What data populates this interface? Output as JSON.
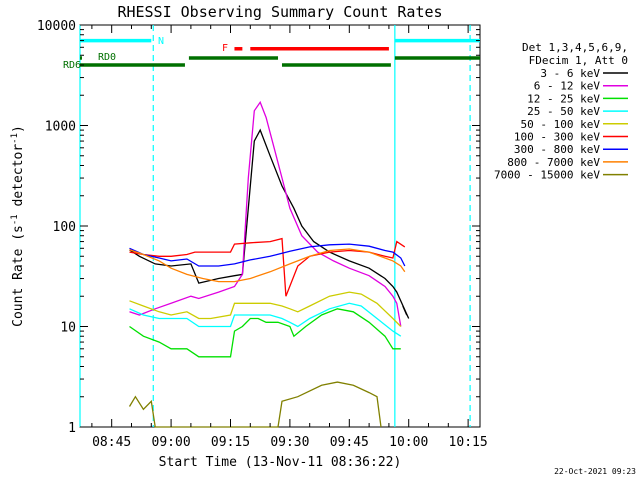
{
  "chart_data": {
    "type": "line",
    "title": "RHESSI Observing Summary Count Rates",
    "xlabel": "Start Time (13-Nov-11 08:36:22)",
    "ylabel_main": "Count Rate (s",
    "ylabel_sup1": "-1",
    "ylabel_mid": " detector",
    "ylabel_sup2": "-1",
    "ylabel_end": ")",
    "y_scale": "log",
    "ylim": [
      1,
      10000
    ],
    "xlim": [
      "08:37:00",
      "10:18:00"
    ],
    "x_ticks": [
      "08:45",
      "09:00",
      "09:15",
      "09:30",
      "09:45",
      "10:00",
      "10:15"
    ],
    "y_ticks": [
      "1",
      "10",
      "100",
      "1000",
      "10000"
    ],
    "legend_header": [
      "Det 1,3,4,5,6,9,",
      "FDecim 1, Att 0"
    ],
    "legend_position": "right",
    "series": [
      {
        "name": "3 - 6 keV",
        "color": "#000000",
        "points": [
          [
            "08:49:30",
            58
          ],
          [
            "08:52:00",
            50
          ],
          [
            "08:56:00",
            42
          ],
          [
            "09:00:00",
            40
          ],
          [
            "09:05:00",
            42
          ],
          [
            "09:07:00",
            27
          ],
          [
            "09:12:00",
            30
          ],
          [
            "09:16:00",
            32
          ],
          [
            "09:18:00",
            33
          ],
          [
            "09:19:30",
            150
          ],
          [
            "09:21:00",
            700
          ],
          [
            "09:22:30",
            900
          ],
          [
            "09:25:00",
            500
          ],
          [
            "09:28:00",
            250
          ],
          [
            "09:31:00",
            150
          ],
          [
            "09:33:00",
            100
          ],
          [
            "09:36:00",
            70
          ],
          [
            "09:40:00",
            55
          ],
          [
            "09:45:00",
            45
          ],
          [
            "09:50:00",
            38
          ],
          [
            "09:54:00",
            30
          ],
          [
            "09:56:00",
            25
          ],
          [
            "09:57:00",
            22
          ],
          [
            "10:00:00",
            12
          ],
          [
            "09:58:30",
            16
          ],
          [
            "09:59:30",
            13
          ]
        ]
      },
      {
        "name": "6 - 12 keV",
        "color": "#e000e0",
        "points": [
          [
            "08:49:30",
            14
          ],
          [
            "08:52:00",
            13
          ],
          [
            "08:56:00",
            15
          ],
          [
            "09:00:00",
            17
          ],
          [
            "09:05:00",
            20
          ],
          [
            "09:07:00",
            19
          ],
          [
            "09:12:00",
            22
          ],
          [
            "09:16:00",
            25
          ],
          [
            "09:18:00",
            33
          ],
          [
            "09:19:30",
            300
          ],
          [
            "09:21:00",
            1400
          ],
          [
            "09:22:30",
            1700
          ],
          [
            "09:24:00",
            1200
          ],
          [
            "09:26:00",
            600
          ],
          [
            "09:28:00",
            300
          ],
          [
            "09:30:00",
            150
          ],
          [
            "09:33:00",
            80
          ],
          [
            "09:37:00",
            55
          ],
          [
            "09:41:00",
            45
          ],
          [
            "09:45:00",
            38
          ],
          [
            "09:50:00",
            32
          ],
          [
            "09:54:00",
            25
          ],
          [
            "09:56:00",
            20
          ],
          [
            "09:57:00",
            17
          ],
          [
            "09:58:00",
            10
          ]
        ]
      },
      {
        "name": "12 - 25 keV",
        "color": "#00e000",
        "points": [
          [
            "08:49:30",
            10
          ],
          [
            "08:53:00",
            8
          ],
          [
            "08:57:00",
            7
          ],
          [
            "09:00:00",
            6
          ],
          [
            "09:04:00",
            6
          ],
          [
            "09:07:00",
            5
          ],
          [
            "09:10:00",
            5
          ],
          [
            "09:15:00",
            5
          ],
          [
            "09:16:00",
            9
          ],
          [
            "09:18:00",
            10
          ],
          [
            "09:20:00",
            12
          ],
          [
            "09:22:00",
            12
          ],
          [
            "09:24:00",
            11
          ],
          [
            "09:27:00",
            11
          ],
          [
            "09:30:00",
            10
          ],
          [
            "09:31:00",
            8
          ],
          [
            "09:34:00",
            10
          ],
          [
            "09:38:00",
            13
          ],
          [
            "09:42:00",
            15
          ],
          [
            "09:46:00",
            14
          ],
          [
            "09:50:00",
            11
          ],
          [
            "09:54:00",
            8
          ],
          [
            "09:56:00",
            6
          ],
          [
            "09:58:00",
            6
          ]
        ]
      },
      {
        "name": "25 - 50 keV",
        "color": "#00ffff",
        "points": [
          [
            "08:49:30",
            15
          ],
          [
            "08:53:00",
            13
          ],
          [
            "08:57:00",
            12
          ],
          [
            "09:00:00",
            12
          ],
          [
            "09:04:00",
            12
          ],
          [
            "09:07:00",
            10
          ],
          [
            "09:10:00",
            10
          ],
          [
            "09:15:00",
            10
          ],
          [
            "09:16:00",
            13
          ],
          [
            "09:20:00",
            13
          ],
          [
            "09:25:00",
            13
          ],
          [
            "09:28:00",
            12
          ],
          [
            "09:30:00",
            11
          ],
          [
            "09:32:00",
            10
          ],
          [
            "09:35:00",
            12
          ],
          [
            "09:40:00",
            15
          ],
          [
            "09:45:00",
            17
          ],
          [
            "09:48:00",
            16
          ],
          [
            "09:52:00",
            12
          ],
          [
            "09:56:00",
            9
          ],
          [
            "09:58:00",
            8
          ]
        ]
      },
      {
        "name": "50 - 100 keV",
        "color": "#cccc00",
        "points": [
          [
            "08:49:30",
            18
          ],
          [
            "08:53:00",
            16
          ],
          [
            "08:57:00",
            14
          ],
          [
            "09:00:00",
            13
          ],
          [
            "09:04:00",
            14
          ],
          [
            "09:07:00",
            12
          ],
          [
            "09:10:00",
            12
          ],
          [
            "09:15:00",
            13
          ],
          [
            "09:16:00",
            17
          ],
          [
            "09:20:00",
            17
          ],
          [
            "09:25:00",
            17
          ],
          [
            "09:28:00",
            16
          ],
          [
            "09:30:00",
            15
          ],
          [
            "09:32:00",
            14
          ],
          [
            "09:35:00",
            16
          ],
          [
            "09:40:00",
            20
          ],
          [
            "09:45:00",
            22
          ],
          [
            "09:48:00",
            21
          ],
          [
            "09:52:00",
            17
          ],
          [
            "09:56:00",
            12
          ],
          [
            "09:58:00",
            10
          ]
        ]
      },
      {
        "name": "100 - 300 keV",
        "color": "#ff0000",
        "points": [
          [
            "08:49:30",
            55
          ],
          [
            "08:53:00",
            52
          ],
          [
            "08:57:00",
            50
          ],
          [
            "09:00:00",
            50
          ],
          [
            "09:04:00",
            52
          ],
          [
            "09:06:00",
            55
          ],
          [
            "09:10:00",
            55
          ],
          [
            "09:15:00",
            55
          ],
          [
            "09:16:00",
            66
          ],
          [
            "09:20:00",
            68
          ],
          [
            "09:25:00",
            70
          ],
          [
            "09:28:00",
            75
          ],
          [
            "09:29:00",
            20
          ],
          [
            "09:32:00",
            40
          ],
          [
            "09:35:00",
            50
          ],
          [
            "09:40:00",
            55
          ],
          [
            "09:45:00",
            57
          ],
          [
            "09:50:00",
            55
          ],
          [
            "09:54:00",
            50
          ],
          [
            "09:56:00",
            48
          ],
          [
            "09:57:00",
            70
          ],
          [
            "09:59:00",
            62
          ]
        ]
      },
      {
        "name": "300 - 800 keV",
        "color": "#0000ff",
        "points": [
          [
            "08:49:30",
            60
          ],
          [
            "08:53:00",
            52
          ],
          [
            "08:57:00",
            48
          ],
          [
            "09:00:00",
            45
          ],
          [
            "09:04:00",
            47
          ],
          [
            "09:07:00",
            40
          ],
          [
            "09:12:00",
            40
          ],
          [
            "09:16:00",
            42
          ],
          [
            "09:20:00",
            46
          ],
          [
            "09:25:00",
            50
          ],
          [
            "09:30:00",
            56
          ],
          [
            "09:35:00",
            62
          ],
          [
            "09:40:00",
            65
          ],
          [
            "09:45:00",
            66
          ],
          [
            "09:50:00",
            63
          ],
          [
            "09:54:00",
            57
          ],
          [
            "09:56:00",
            55
          ],
          [
            "09:58:00",
            48
          ],
          [
            "09:59:00",
            40
          ]
        ]
      },
      {
        "name": "800 - 7000 keV",
        "color": "#ff8000",
        "points": [
          [
            "08:49:30",
            58
          ],
          [
            "08:53:00",
            52
          ],
          [
            "08:57:00",
            45
          ],
          [
            "09:00:00",
            38
          ],
          [
            "09:04:00",
            33
          ],
          [
            "09:08:00",
            30
          ],
          [
            "09:12:00",
            28
          ],
          [
            "09:16:00",
            28
          ],
          [
            "09:20:00",
            30
          ],
          [
            "09:25:00",
            35
          ],
          [
            "09:30:00",
            42
          ],
          [
            "09:35:00",
            50
          ],
          [
            "09:40:00",
            57
          ],
          [
            "09:45:00",
            59
          ],
          [
            "09:50:00",
            55
          ],
          [
            "09:54:00",
            48
          ],
          [
            "09:56:00",
            45
          ],
          [
            "09:58:00",
            40
          ],
          [
            "09:59:00",
            35
          ]
        ]
      },
      {
        "name": "7000 - 15000 keV",
        "color": "#808000",
        "points": [
          [
            "08:49:30",
            1.6
          ],
          [
            "08:51:00",
            2
          ],
          [
            "08:53:00",
            1.5
          ],
          [
            "08:55:00",
            1.8
          ],
          [
            "08:56:00",
            1
          ],
          [
            "09:27:00",
            1
          ],
          [
            "09:28:00",
            1.8
          ],
          [
            "09:32:00",
            2
          ],
          [
            "09:38:00",
            2.6
          ],
          [
            "09:42:00",
            2.8
          ],
          [
            "09:46:00",
            2.6
          ],
          [
            "09:50:00",
            2.2
          ],
          [
            "09:52:00",
            2
          ],
          [
            "09:53:00",
            1
          ]
        ]
      }
    ],
    "status_bars": [
      {
        "label": "N",
        "color": "#00ffff",
        "value": 7000,
        "segments": [
          [
            "08:37:00",
            "08:55:00"
          ],
          [
            "09:56:30",
            "10:18:00"
          ]
        ]
      },
      {
        "label": "F",
        "color": "#ff0000",
        "value": 5800,
        "segments": [
          [
            "09:16:00",
            "09:18:00"
          ],
          [
            "09:20:00",
            "09:55:00"
          ]
        ]
      },
      {
        "label": "RD0",
        "color": "#007000",
        "value": 4700,
        "segments": [
          [
            "08:37:00",
            "08:37:30"
          ],
          [
            "09:04:30",
            "09:27:00"
          ],
          [
            "09:56:30",
            "10:18:00"
          ]
        ]
      },
      {
        "label": "RD6",
        "color": "#007000",
        "value": 4000,
        "segments": [
          [
            "08:37:00",
            "09:03:30"
          ],
          [
            "09:28:00",
            "09:55:30"
          ]
        ]
      }
    ],
    "vertical_markers": [
      {
        "time": "08:37:00",
        "color": "#00ffff",
        "style": "solid"
      },
      {
        "time": "08:55:30",
        "color": "#00ffff",
        "style": "dashed"
      },
      {
        "time": "09:56:30",
        "color": "#00ffff",
        "style": "solid"
      },
      {
        "time": "10:15:30",
        "color": "#00ffff",
        "style": "dashed"
      }
    ],
    "footer_date": "22-Oct-2021 09:23"
  }
}
